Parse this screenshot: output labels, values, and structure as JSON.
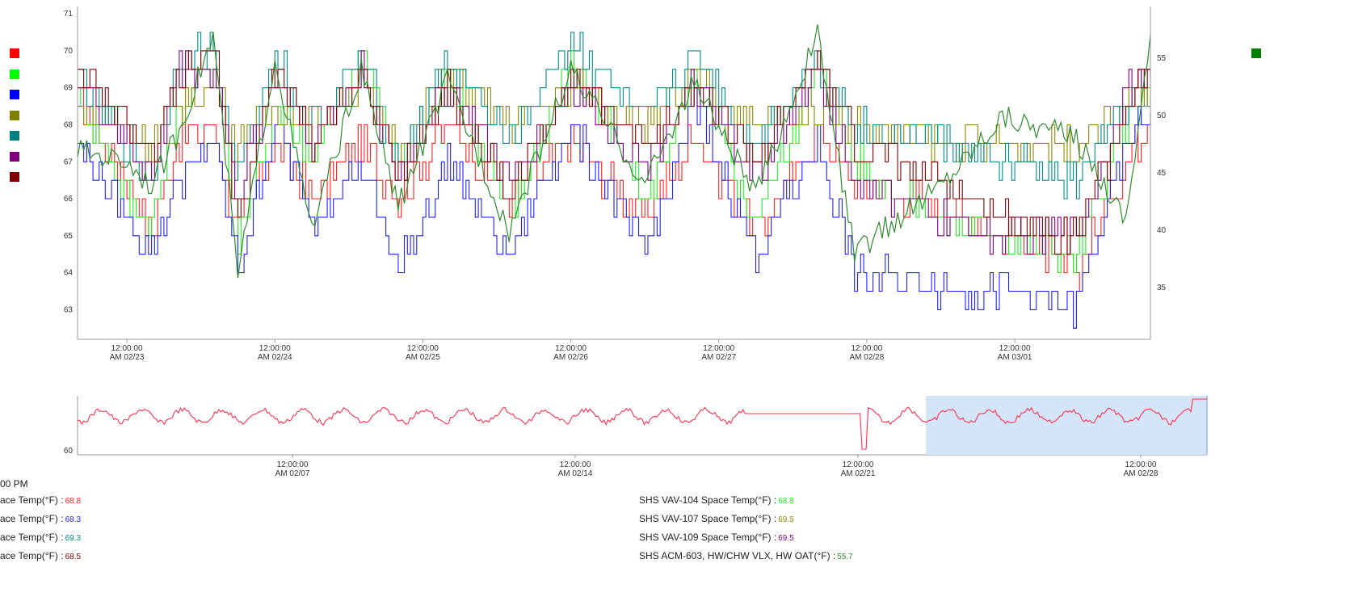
{
  "legend": {
    "left_keys": [
      "#ff0000",
      "#00ff00",
      "#0000ff",
      "#808000",
      "#008080",
      "#800080",
      "#800000"
    ],
    "right_keys": [
      "#008000"
    ]
  },
  "colors": {
    "vav101": "#ff2020",
    "vav104": "#22ee22",
    "vav105": "#2020ff",
    "vav106": "#8a8a00",
    "vav107": "#008b8b",
    "vav108": "#800080",
    "vav109": "#800000",
    "oat": "#2e8b2e",
    "nav_line": "#ff3050",
    "nav_selection": "#cfe2f7"
  },
  "chart_data": [
    {
      "type": "line",
      "x_labels": [
        [
          "12:00:00",
          "AM 02/23"
        ],
        [
          "12:00:00",
          "AM 02/24"
        ],
        [
          "12:00:00",
          "AM 02/25"
        ],
        [
          "12:00:00",
          "AM 02/26"
        ],
        [
          "12:00:00",
          "AM 02/27"
        ],
        [
          "12:00:00",
          "AM 02/28"
        ],
        [
          "12:00:00",
          "AM 03/01"
        ]
      ],
      "x_range": [
        "02/22 16:00",
        "03/01 22:00"
      ],
      "y_left": {
        "min": 62.2,
        "max": 71.2,
        "ticks": [
          "71",
          "70",
          "69",
          "68",
          "67",
          "66",
          "65",
          "64",
          "63"
        ]
      },
      "y_right": {
        "min": 30.5,
        "max": 59.5,
        "ticks": [
          "55",
          "50",
          "45",
          "40",
          "35"
        ]
      },
      "x_hours": [
        0,
        8,
        12,
        16,
        22,
        26,
        32,
        38,
        46,
        52,
        60,
        70,
        80,
        92,
        100,
        110,
        120,
        126,
        140,
        150,
        162,
        170,
        174
      ],
      "series": [
        {
          "key": "vav101",
          "values": [
            68.7,
            66.5,
            65.2,
            67.5,
            68.0,
            65.0,
            67.5,
            66.0,
            67.5,
            66.0,
            68.0,
            66.0,
            67.5,
            65.5,
            67.8,
            65.0,
            67.8,
            66.5,
            65.8,
            65.0,
            64.0,
            67.0,
            68.3
          ]
        },
        {
          "key": "vav104",
          "values": [
            69.0,
            66.0,
            65.5,
            68.0,
            69.8,
            65.0,
            68.5,
            67.0,
            70.0,
            67.0,
            69.5,
            65.5,
            69.7,
            66.0,
            69.0,
            65.5,
            69.5,
            67.0,
            65.5,
            65.0,
            64.5,
            68.0,
            69.2
          ]
        },
        {
          "key": "vav105",
          "values": [
            67.5,
            65.5,
            64.5,
            66.5,
            67.5,
            64.0,
            68.0,
            65.5,
            67.0,
            64.0,
            67.0,
            64.5,
            68.0,
            64.5,
            68.5,
            64.5,
            67.5,
            64.0,
            63.6,
            63.5,
            63.0,
            67.5,
            68.3
          ]
        },
        {
          "key": "vav106",
          "values": [
            68.5,
            68.0,
            67.5,
            68.5,
            69.0,
            67.5,
            68.5,
            68.0,
            69.0,
            67.5,
            69.3,
            68.0,
            69.0,
            68.0,
            69.2,
            68.0,
            68.5,
            68.0,
            67.5,
            67.5,
            67.5,
            68.5,
            68.8
          ]
        },
        {
          "key": "vav107",
          "values": [
            69.3,
            67.5,
            66.5,
            69.8,
            70.0,
            66.5,
            70.0,
            68.0,
            69.8,
            67.0,
            69.8,
            67.5,
            70.3,
            68.0,
            70.0,
            67.5,
            69.8,
            68.0,
            67.5,
            67.0,
            66.5,
            68.5,
            69.5
          ]
        },
        {
          "key": "vav108",
          "values": [
            69.3,
            67.5,
            66.5,
            69.5,
            69.5,
            66.0,
            69.5,
            67.5,
            69.5,
            66.5,
            69.0,
            66.5,
            69.0,
            67.0,
            69.0,
            66.5,
            69.5,
            66.5,
            65.5,
            65.0,
            65.0,
            69.0,
            69.3
          ]
        },
        {
          "key": "vav109",
          "values": [
            69.5,
            68.0,
            67.0,
            69.0,
            70.0,
            65.5,
            69.5,
            67.5,
            69.5,
            66.5,
            69.0,
            66.0,
            69.3,
            67.5,
            69.0,
            67.0,
            69.8,
            67.5,
            66.5,
            65.5,
            65.0,
            68.5,
            69.5
          ]
        }
      ],
      "series_right": {
        "key": "oat",
        "values": [
          47,
          46,
          44,
          48,
          57,
          36,
          55,
          40,
          54,
          42,
          53,
          40,
          54,
          44,
          53,
          43,
          57,
          38,
          44,
          50,
          48,
          41,
          57
        ]
      }
    },
    {
      "type": "line",
      "x_labels": [
        [
          "12:00:00",
          "AM 02/07"
        ],
        [
          "12:00:00",
          "AM 02/14"
        ],
        [
          "12:00:00",
          "AM 02/21"
        ],
        [
          "12:00:00",
          "AM 02/28"
        ]
      ],
      "y_tick": "60",
      "selection_range": [
        "02/22",
        "03/01"
      ]
    }
  ],
  "readouts": {
    "timestamp": "00 PM",
    "left": [
      {
        "label": "ace Temp(°F)",
        "value": "68.8",
        "color": "#ff2020"
      },
      {
        "label": "ace Temp(°F)",
        "value": "68.3",
        "color": "#2020ff"
      },
      {
        "label": "ace Temp(°F)",
        "value": "69.3",
        "color": "#008b8b"
      },
      {
        "label": "ace Temp(°F)",
        "value": "68.5",
        "color": "#800000"
      }
    ],
    "right": [
      {
        "label": "SHS VAV-104 Space Temp(°F)",
        "value": "68.8",
        "color": "#22ee22"
      },
      {
        "label": "SHS VAV-107 Space Temp(°F)",
        "value": "69.5",
        "color": "#8a8a00"
      },
      {
        "label": "SHS VAV-109 Space Temp(°F)",
        "value": "69.5",
        "color": "#800080"
      },
      {
        "label": "SHS ACM-603, HW/CHW VLX, HW OAT(°F)",
        "value": "55.7",
        "color": "#2e8b2e"
      }
    ]
  }
}
